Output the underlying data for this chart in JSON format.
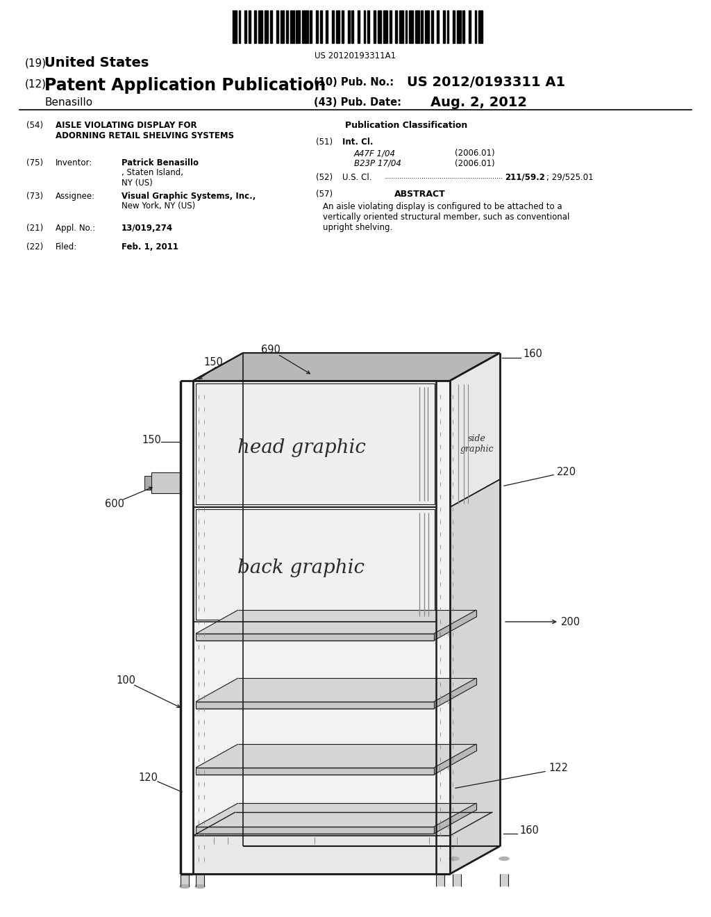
{
  "bg_color": "#ffffff",
  "barcode_text": "US 20120193311A1",
  "title_19": "(19)",
  "title_19_bold": "United States",
  "title_12": "(12)",
  "title_12_bold": "Patent Application Publication",
  "title_inventor": "Benasillo",
  "pub_no_label": "(10) Pub. No.:",
  "pub_no": "US 2012/0193311 A1",
  "pub_date_label": "(43) Pub. Date:",
  "pub_date": "Aug. 2, 2012",
  "field54_label": "(54)",
  "field54_bold": "AISLE VIOLATING DISPLAY FOR\nADORNING RETAIL SHELVING SYSTEMS",
  "field75_label": "(75)",
  "field75_name": "Inventor:",
  "field75_val_bold": "Patrick Benasillo",
  "field75_val2": ", Staten Island,\nNY (US)",
  "field73_label": "(73)",
  "field73_name": "Assignee:",
  "field73_val_bold": "Visual Graphic Systems, Inc.,",
  "field73_val2": "\nNew York, NY (US)",
  "field21_label": "(21)",
  "field21_name": "Appl. No.:",
  "field21_val": "13/019,274",
  "field22_label": "(22)",
  "field22_name": "Filed:",
  "field22_val": "Feb. 1, 2011",
  "pub_class_title": "Publication Classification",
  "field51_label": "(51)",
  "field51_name": "Int. Cl.",
  "field51_class1": "A47F 1/04",
  "field51_date1": "(2006.01)",
  "field51_class2": "B23P 17/04",
  "field51_date2": "(2006.01)",
  "field52_label": "(52)",
  "field52_name": "U.S. Cl.",
  "field52_val": "211/59.2",
  "field52_val2": "; 29/525.01",
  "field57_label": "(57)",
  "field57_name": "ABSTRACT",
  "field57_val": "An aisle violating display is configured to be attached to a\nvertically oriented structural member, such as conventional\nupright shelving.",
  "text_head_graphic": "head graphic",
  "text_side_graphic": "side\ngraphic",
  "text_back_graphic": "back graphic",
  "lbl_160_top": "160",
  "lbl_690": "690",
  "lbl_150_top": "150",
  "lbl_150_mid": "150",
  "lbl_220": "220",
  "lbl_600": "600",
  "lbl_200": "200",
  "lbl_100": "100",
  "lbl_120": "120",
  "lbl_122": "122",
  "lbl_160_bot": "160"
}
